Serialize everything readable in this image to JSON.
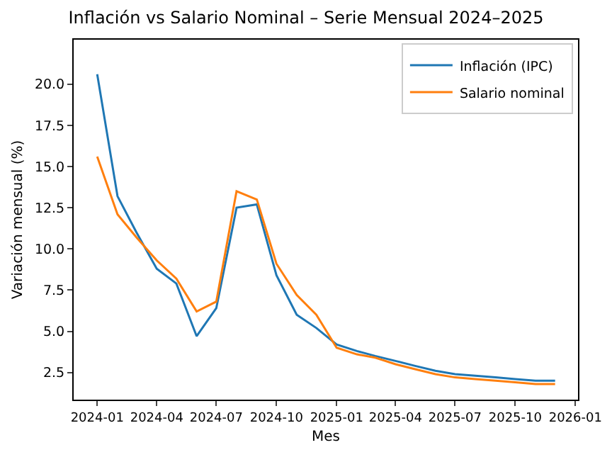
{
  "chart_data": {
    "type": "line",
    "title": "Inflación vs Salario Nominal – Serie Mensual 2024–2025",
    "xlabel": "Mes",
    "ylabel": "Variación mensual (%)",
    "x": [
      "2024-01",
      "2024-02",
      "2024-03",
      "2024-04",
      "2024-05",
      "2024-06",
      "2024-07",
      "2024-08",
      "2024-09",
      "2024-10",
      "2024-11",
      "2024-12",
      "2025-01",
      "2025-02",
      "2025-03",
      "2025-04",
      "2025-05",
      "2025-06",
      "2025-07",
      "2025-08",
      "2025-09",
      "2025-10",
      "2025-11",
      "2025-12"
    ],
    "series": [
      {
        "name": "Inflación (IPC)",
        "color": "#1f77b4",
        "values": [
          20.6,
          13.2,
          11.0,
          8.8,
          7.9,
          4.7,
          6.4,
          12.5,
          12.7,
          8.4,
          6.0,
          5.2,
          4.2,
          3.8,
          3.5,
          3.2,
          2.9,
          2.6,
          2.4,
          2.3,
          2.2,
          2.1,
          2.0,
          2.0
        ]
      },
      {
        "name": "Salario nominal",
        "color": "#ff7f0e",
        "values": [
          15.6,
          12.1,
          10.7,
          9.3,
          8.2,
          6.2,
          6.8,
          13.5,
          13.0,
          9.1,
          7.2,
          6.0,
          4.0,
          3.6,
          3.4,
          3.0,
          2.7,
          2.4,
          2.2,
          2.1,
          2.0,
          1.9,
          1.8,
          1.8
        ]
      }
    ],
    "xlim": [
      "2023-11-26",
      "2026-01-05"
    ],
    "xticks": [
      "2024-01",
      "2024-04",
      "2024-07",
      "2024-10",
      "2025-01",
      "2025-04",
      "2025-07",
      "2025-10",
      "2026-01"
    ],
    "ylim": [
      0.85,
      22.7
    ],
    "yticks": [
      {
        "value": 2.5,
        "label": "2.5"
      },
      {
        "value": 5,
        "label": "5.0"
      },
      {
        "value": 7.5,
        "label": "7.5"
      },
      {
        "value": 10,
        "label": "10.0"
      },
      {
        "value": 12.5,
        "label": "12.5"
      },
      {
        "value": 15,
        "label": "15.0"
      },
      {
        "value": 17.5,
        "label": "17.5"
      },
      {
        "value": 20,
        "label": "20.0"
      }
    ],
    "grid": false,
    "legend": "top right",
    "marker": "none",
    "line_style": "solid"
  }
}
